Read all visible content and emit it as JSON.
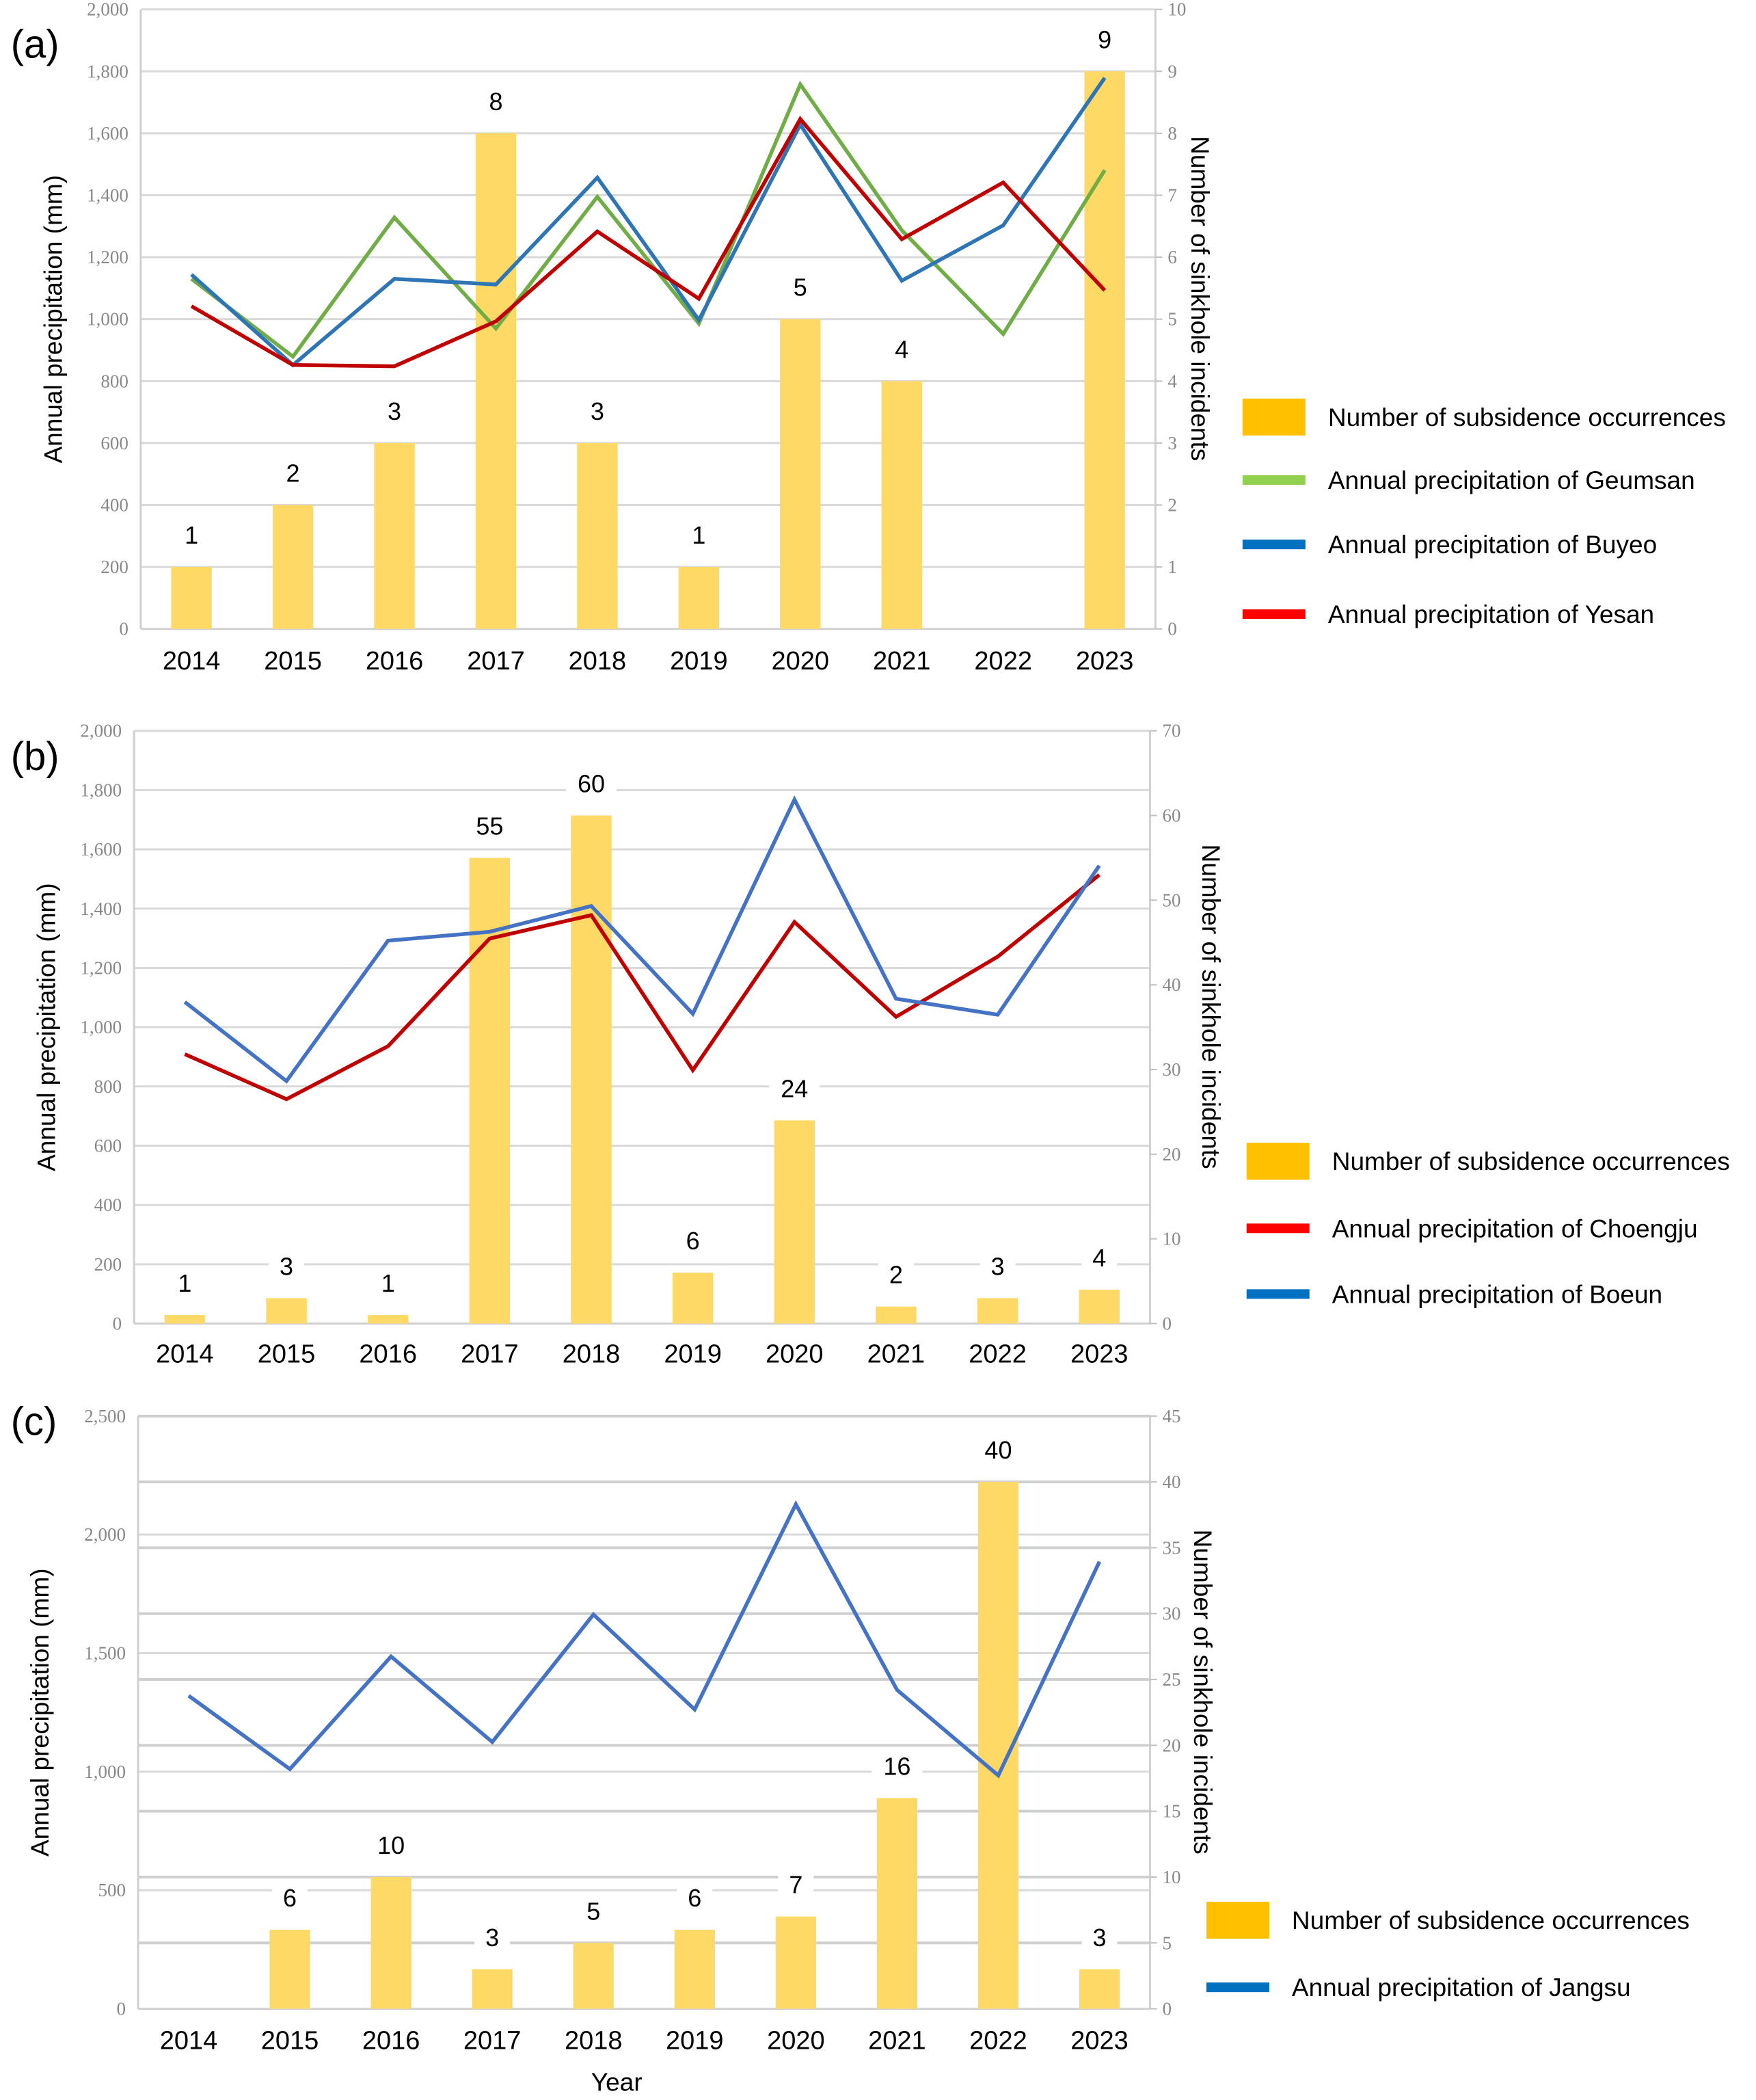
{
  "chart_data": [
    {
      "panel_label": "(a)",
      "type": "bar+line",
      "categories": [
        "2014",
        "2015",
        "2016",
        "2017",
        "2018",
        "2019",
        "2020",
        "2021",
        "2022",
        "2023"
      ],
      "ylabel": "Annual precipitation (mm)",
      "y2label": "Number of sinkhole incidents",
      "xlabel": "",
      "ylim": [
        0,
        2000
      ],
      "y_ticks": [
        0,
        200,
        400,
        600,
        800,
        1000,
        1200,
        1400,
        1600,
        1800,
        2000
      ],
      "y_tick_labels": [
        "0",
        "200",
        "400",
        "600",
        "800",
        "1,000",
        "1,200",
        "1,400",
        "1,600",
        "1,800",
        "2,000"
      ],
      "y2lim": [
        0,
        10
      ],
      "y2_ticks": [
        0,
        1,
        2,
        3,
        4,
        5,
        6,
        7,
        8,
        9,
        10
      ],
      "y2_tick_labels": [
        "0",
        "1",
        "2",
        "3",
        "4",
        "5",
        "6",
        "7",
        "8",
        "9",
        "10"
      ],
      "grid": true,
      "legend_position": "right",
      "bars": {
        "name": "Number of subsidence occurrences",
        "axis": "right",
        "values": [
          1,
          2,
          3,
          8,
          3,
          1,
          5,
          4,
          0,
          9
        ],
        "labels": [
          "1",
          "2",
          "3",
          "8",
          "3",
          "1",
          "5",
          "4",
          "",
          "9"
        ],
        "color": "#FFD966",
        "legend_color": "#FFC000"
      },
      "series": [
        {
          "name": "Annual precipitation of Geumsan",
          "axis": "left",
          "color": "#70AD47",
          "legend_color": "#92D050",
          "values": [
            1130,
            879,
            1328,
            970,
            1395,
            986,
            1758,
            1287,
            952,
            1481
          ]
        },
        {
          "name": "Annual precipitation of Buyeo",
          "axis": "left",
          "color": "#2E75B6",
          "legend_color": "#0070C0",
          "values": [
            1144,
            852,
            1130,
            1112,
            1457,
            997,
            1628,
            1124,
            1303,
            1779
          ]
        },
        {
          "name": "Annual precipitation of Yesan",
          "axis": "left",
          "color": "#C00000",
          "legend_color": "#FF0000",
          "values": [
            1042,
            852,
            848,
            993,
            1283,
            1066,
            1646,
            1258,
            1441,
            1093
          ]
        }
      ]
    },
    {
      "panel_label": "(b)",
      "type": "bar+line",
      "categories": [
        "2014",
        "2015",
        "2016",
        "2017",
        "2018",
        "2019",
        "2020",
        "2021",
        "2022",
        "2023"
      ],
      "ylabel": "Annual precipitation (mm)",
      "y2label": "Number of sinkhole incidents",
      "xlabel": "",
      "ylim": [
        0,
        2000
      ],
      "y_ticks": [
        0,
        200,
        400,
        600,
        800,
        1000,
        1200,
        1400,
        1600,
        1800,
        2000
      ],
      "y_tick_labels": [
        "0",
        "200",
        "400",
        "600",
        "800",
        "1,000",
        "1,200",
        "1,400",
        "1,600",
        "1,800",
        "2,000"
      ],
      "y2lim": [
        0,
        70
      ],
      "y2_ticks": [
        0,
        10,
        20,
        30,
        40,
        50,
        60,
        70
      ],
      "y2_tick_labels": [
        "0",
        "10",
        "20",
        "30",
        "40",
        "50",
        "60",
        "70"
      ],
      "grid": true,
      "legend_position": "right",
      "bars": {
        "name": "Number of subsidence occurrences",
        "axis": "right",
        "values": [
          1,
          3,
          1,
          55,
          60,
          6,
          24,
          2,
          3,
          4
        ],
        "labels": [
          "1",
          "3",
          "1",
          "55",
          "60",
          "6",
          "24",
          "2",
          "3",
          "4"
        ],
        "color": "#FFD966",
        "legend_color": "#FFC000"
      },
      "series": [
        {
          "name": "Annual precipitation of Choengju",
          "axis": "left",
          "color": "#C00000",
          "legend_color": "#FF0000",
          "values": [
            909,
            757,
            936,
            1299,
            1378,
            855,
            1355,
            1035,
            1238,
            1514
          ]
        },
        {
          "name": "Annual precipitation of Boeun",
          "axis": "left",
          "color": "#4472C4",
          "legend_color": "#0070C0",
          "values": [
            1085,
            818,
            1292,
            1322,
            1409,
            1045,
            1768,
            1096,
            1042,
            1545
          ]
        }
      ]
    },
    {
      "panel_label": "(c)",
      "type": "bar+line",
      "categories": [
        "2014",
        "2015",
        "2016",
        "2017",
        "2018",
        "2019",
        "2020",
        "2021",
        "2022",
        "2023"
      ],
      "ylabel": "Annual precipitation (mm)",
      "y2label": "Number of sinkhole incidents",
      "xlabel": "Year",
      "ylim": [
        0,
        2500
      ],
      "y_ticks": [
        0,
        500,
        1000,
        1500,
        2000,
        2500
      ],
      "y_tick_labels": [
        "0",
        "500",
        "1,000",
        "1,500",
        "2,000",
        "2,500"
      ],
      "y2lim": [
        0,
        45
      ],
      "y2_ticks": [
        0,
        5,
        10,
        15,
        20,
        25,
        30,
        35,
        40,
        45
      ],
      "y2_tick_labels": [
        "0",
        "5",
        "10",
        "15",
        "20",
        "25",
        "30",
        "35",
        "40",
        "45"
      ],
      "grid": true,
      "legend_position": "right",
      "bars": {
        "name": "Number of subsidence occurrences",
        "axis": "right",
        "values": [
          0,
          6,
          10,
          3,
          5,
          6,
          7,
          16,
          40,
          3
        ],
        "labels": [
          "",
          "6",
          "10",
          "3",
          "5",
          "6",
          "7",
          "16",
          "40",
          "3"
        ],
        "color": "#FFD966",
        "legend_color": "#FFC000"
      },
      "series": [
        {
          "name": "Annual precipitation of Jangsu",
          "axis": "left",
          "color": "#4472C4",
          "legend_color": "#0070C0",
          "values": [
            1320,
            1011,
            1486,
            1125,
            1663,
            1262,
            2128,
            1345,
            984,
            1886
          ]
        }
      ]
    }
  ]
}
